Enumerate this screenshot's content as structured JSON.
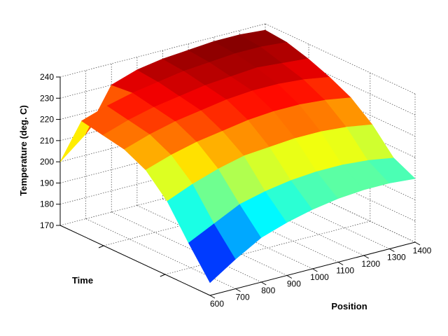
{
  "chart_data": {
    "type": "surface",
    "title": "",
    "xlabel": "Position",
    "ylabel": "Time",
    "zlabel": "Temperature (deg. C)",
    "xlim": [
      600,
      1400
    ],
    "zlim": [
      170,
      240
    ],
    "x_ticks": [
      "600",
      "700",
      "800",
      "900",
      "1000",
      "1100",
      "1200",
      "1300",
      "1400"
    ],
    "z_ticks": [
      "170",
      "180",
      "190",
      "200",
      "210",
      "220",
      "230",
      "240"
    ],
    "y_tick_labels": [],
    "grid": true,
    "colormap": "jet",
    "x": [
      600,
      700,
      800,
      900,
      1000,
      1100,
      1200,
      1300,
      1400
    ],
    "time_rows_front_to_back": [
      [
        176,
        184,
        191,
        195,
        198,
        200,
        201,
        201,
        200
      ],
      [
        190,
        196,
        202,
        205,
        207,
        208,
        208,
        207,
        205
      ],
      [
        205,
        210,
        214,
        217,
        218,
        219,
        219,
        218,
        216
      ],
      [
        215,
        219,
        222,
        224,
        226,
        227,
        227,
        226,
        224
      ],
      [
        220,
        224,
        227,
        229,
        231,
        232,
        232,
        231,
        229
      ],
      [
        222,
        226,
        229,
        231,
        233,
        234,
        235,
        234,
        233
      ],
      [
        224,
        228,
        231,
        233,
        235,
        236,
        237,
        237,
        236
      ],
      [
        200,
        210,
        230,
        234,
        236,
        237,
        238,
        238,
        237
      ]
    ]
  }
}
